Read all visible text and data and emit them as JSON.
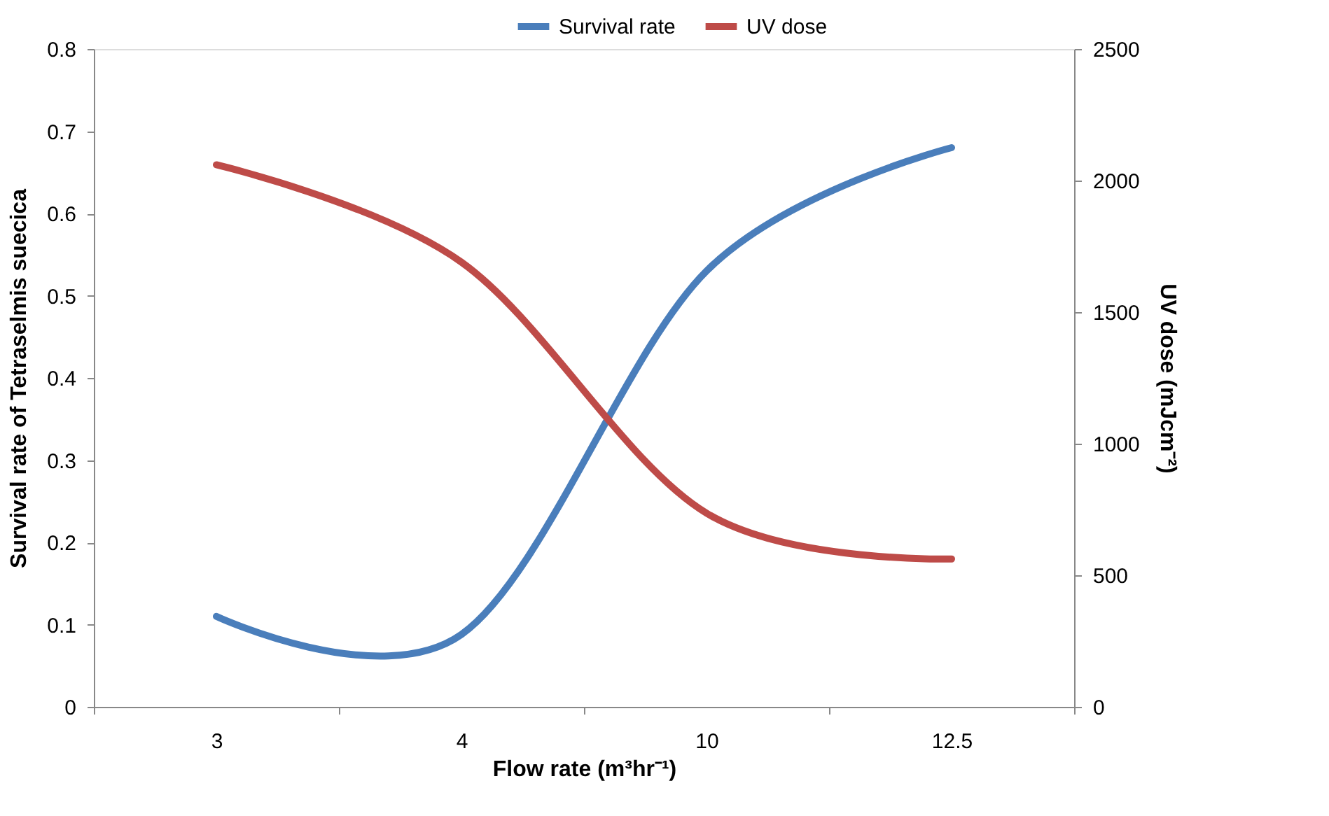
{
  "chart_data": {
    "type": "line",
    "xlabel": "Flow rate (m³hr⁻¹)",
    "ylabel": "Survival rate of Tetraselmis suecica",
    "y2label": "UV dose (mJcm⁻²)",
    "categories": [
      "3",
      "4",
      "10",
      "12.5"
    ],
    "series": [
      {
        "name": "Survival rate",
        "color": "#4a7ebb",
        "values": [
          0.11,
          0.088,
          0.53,
          0.68
        ]
      },
      {
        "name": "UV dose",
        "color": "#be4b48",
        "axis": "y2",
        "values": [
          2060,
          1690,
          736,
          562
        ]
      }
    ],
    "ylim": [
      0,
      0.8
    ],
    "yticks": [
      0,
      0.1,
      0.2,
      0.3,
      0.4,
      0.5,
      0.6,
      0.7,
      0.8
    ],
    "y2lim": [
      0,
      2500
    ],
    "y2ticks": [
      0,
      500,
      1000,
      1500,
      2000,
      2500
    ],
    "legend": "top",
    "grid": false,
    "marker": "none",
    "line_style": "solid"
  }
}
